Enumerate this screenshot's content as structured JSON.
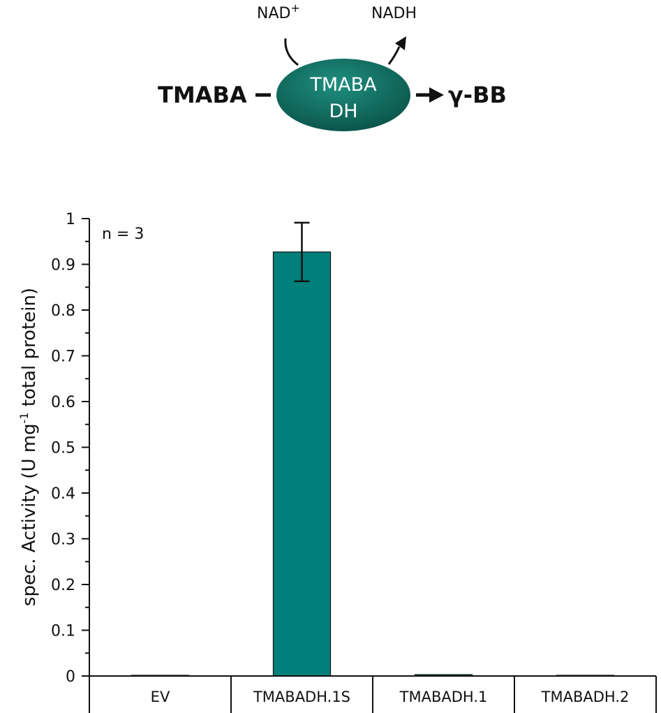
{
  "scheme": {
    "substrate": "TMABA",
    "product": "γ-BB",
    "enzyme_line1": "TMABA",
    "enzyme_line2": "DH",
    "cofactor_in": "NAD",
    "cofactor_in_sup": "+",
    "cofactor_out": "NADH",
    "enzyme_color": "#0e6e62"
  },
  "chart_data": {
    "type": "bar",
    "categories": [
      "EV",
      "TMABADH.1S",
      "TMABADH.1",
      "TMABADH.2"
    ],
    "series": [
      {
        "values": [
          0.0,
          0.927,
          0.003,
          0.001
        ],
        "errors": [
          0.0,
          0.064,
          0.0,
          0.0
        ],
        "color": "#007f7b"
      }
    ],
    "ylabel_prefix": "spec. Activity (U mg",
    "ylabel_sup": "-1",
    "ylabel_suffix": " total protein)",
    "ylim": [
      0,
      1
    ],
    "yticks": [
      0,
      0.1,
      0.2,
      0.3,
      0.4,
      0.5,
      0.6,
      0.7,
      0.8,
      0.9,
      1
    ],
    "ytick_labels": [
      "0",
      "0.1",
      "0.2",
      "0.3",
      "0.4",
      "0.5",
      "0.6",
      "0.7",
      "0.8",
      "0.9",
      "1"
    ],
    "annotation": "n = 3",
    "grid": false
  }
}
